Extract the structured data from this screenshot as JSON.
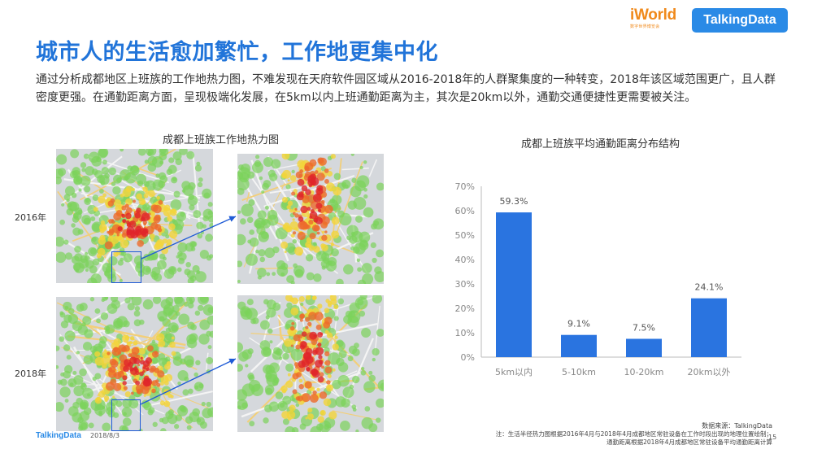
{
  "header": {
    "logo_iworld": "iWorld",
    "logo_iworld_sub": "数字世界博览会",
    "logo_td": "TalkingData"
  },
  "slide": {
    "title": "城市人的生活愈加繁忙，工作地更集中化",
    "description": "通过分析成都地区上班族的工作地热力图，不难发现在天府软件园区域从2016-2018年的人群聚集度的一种转变，2018年该区域范围更广，且人群密度更强。在通勤距离方面，呈现极端化发展，在5km以内上班通勤距离为主，其次是20km以外，通勤交通便捷性更需要被关注。"
  },
  "heatmap": {
    "title": "成都上班族工作地热力图",
    "year_2016": "2016年",
    "year_2018": "2018年",
    "colors": {
      "low": "#7bd35a",
      "mid": "#f2d43a",
      "high": "#ec6a2c",
      "peak": "#e0262a",
      "box": "#1f5bd6"
    }
  },
  "chart": {
    "title": "成都上班族平均通勤距离分布结构"
  },
  "chart_data": {
    "type": "bar",
    "title": "成都上班族平均通勤距离分布结构",
    "categories": [
      "5km以内",
      "5-10km",
      "10-20km",
      "20km以外"
    ],
    "values": [
      59.3,
      9.1,
      7.5,
      24.1
    ],
    "value_labels": [
      "59.3%",
      "9.1%",
      "7.5%",
      "24.1%"
    ],
    "ylim": [
      0,
      70
    ],
    "yticks": [
      "0%",
      "10%",
      "20%",
      "30%",
      "40%",
      "50%",
      "60%",
      "70%"
    ],
    "grid": false,
    "bar_color": "#2a74e0"
  },
  "footer": {
    "logo": "TalkingData",
    "date": "2018/8/3",
    "source": "数据来源：TalkingData",
    "note_line1": "注：生活半径热力图根据2016年4月与2018年4月成都地区常驻设备在工作时段出现的地理位置绘制；",
    "note_line2": "通勤距离根据2018年4月成都地区常驻设备平均通勤距离计算",
    "page": "15"
  }
}
